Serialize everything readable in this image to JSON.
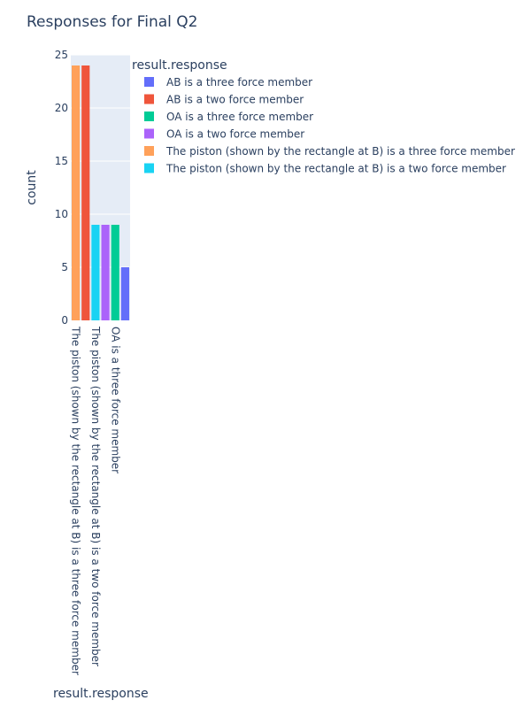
{
  "chart_data": {
    "type": "bar",
    "title": "Responses for Final Q2",
    "xlabel": "result.response",
    "ylabel": "count",
    "ylim": [
      0,
      25
    ],
    "yticks": [
      0,
      5,
      10,
      15,
      20,
      25
    ],
    "grid": true,
    "legend_title": "result.response",
    "legend_position": "right",
    "x_tick_labels": [
      "The piston (shown by the rectangle at B) is a three force member",
      "The piston (shown by the rectangle at B) is a two force member",
      "OA is a three force member"
    ],
    "series": [
      {
        "name": "AB is a three force member",
        "color": "#636efa",
        "values": [
          5
        ]
      },
      {
        "name": "AB is a two force member",
        "color": "#EF553B",
        "values": [
          24
        ]
      },
      {
        "name": "OA is a three force member",
        "color": "#00cc96",
        "values": [
          9
        ]
      },
      {
        "name": "OA is a two force member",
        "color": "#ab63fa",
        "values": [
          9
        ]
      },
      {
        "name": "The piston (shown by the rectangle at B) is a three force member",
        "color": "#FFA15A",
        "values": [
          24
        ]
      },
      {
        "name": "The piston (shown by the rectangle at B) is a two force member",
        "color": "#19d3f3",
        "values": [
          9
        ]
      }
    ],
    "bar_order": [
      "The piston (shown by the rectangle at B) is a three force member",
      "AB is a two force member",
      "The piston (shown by the rectangle at B) is a two force member",
      "OA is a two force member",
      "OA is a three force member",
      "AB is a three force member"
    ]
  }
}
